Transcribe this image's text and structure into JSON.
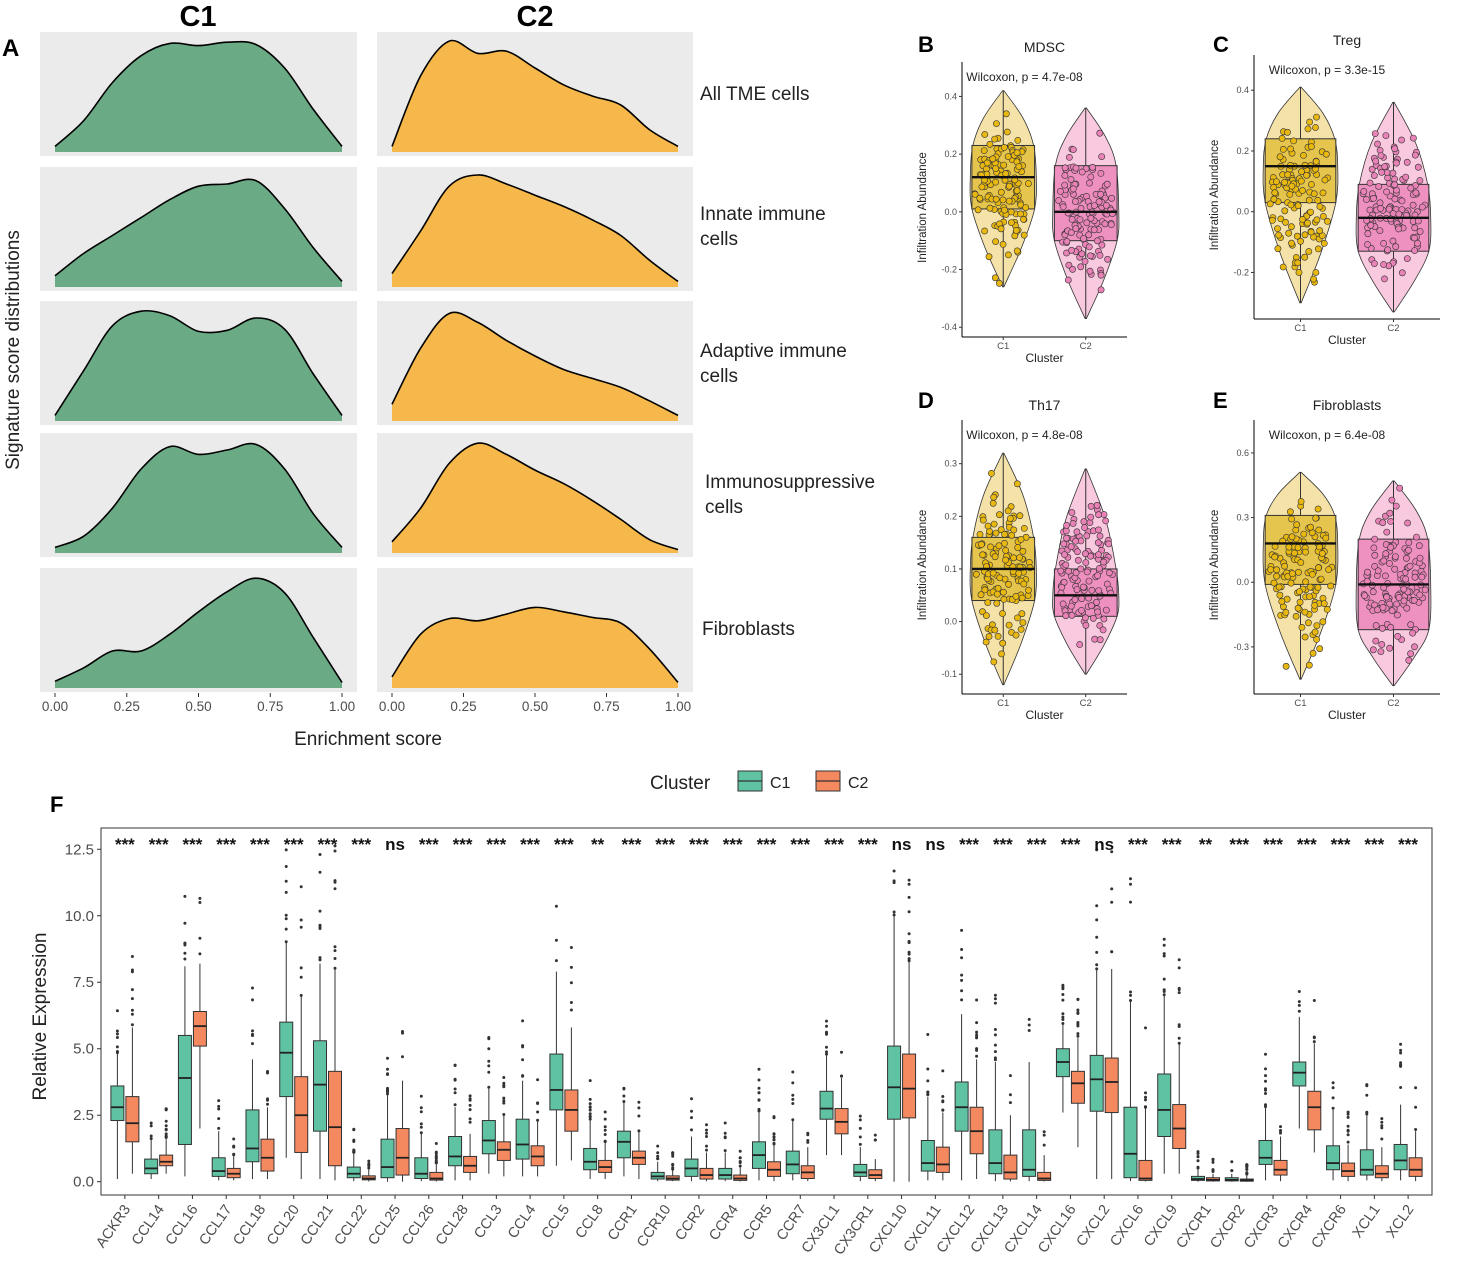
{
  "panel_letters": {
    "A": "A",
    "B": "B",
    "C": "C",
    "D": "D",
    "E": "E",
    "F": "F"
  },
  "colors": {
    "c1_density": "#6aaa85",
    "c2_density": "#f6b84a",
    "facet_bg": "#ebebeb",
    "c1_violin": "#f3dfa0",
    "c1_box": "#e2c03e",
    "c1_point": "#e8b810",
    "c2_violin": "#f7c3dc",
    "c2_box": "#ec86bb",
    "c2_point": "#e982b7",
    "c1_teal": "#5fc2a2",
    "c2_orange": "#f4895f",
    "text": "#222222",
    "axis_text": "#4d4d4d"
  },
  "chart_data": [
    {
      "id": "A",
      "type": "area",
      "title": "",
      "column_labels": [
        "C1",
        "C2"
      ],
      "row_labels": [
        [
          "All TME cells"
        ],
        [
          "Innate immune",
          "cells"
        ],
        [
          "Adaptive immune",
          "cells"
        ],
        [
          "Immunosuppressive",
          "cells"
        ],
        [
          "Fibroblasts"
        ]
      ],
      "xlabel": "Enrichment score",
      "ylabel": "Signature score distributions",
      "xlim": [
        0,
        1
      ],
      "x_ticks": [
        "0.00",
        "0.25",
        "0.50",
        "0.75",
        "1.00"
      ],
      "x": [
        0,
        0.1,
        0.2,
        0.3,
        0.4,
        0.5,
        0.6,
        0.7,
        0.8,
        0.9,
        1.0
      ],
      "series": [
        {
          "name": "C1 All TME cells",
          "values": [
            0.05,
            0.28,
            0.62,
            0.86,
            0.97,
            0.95,
            0.98,
            0.96,
            0.75,
            0.38,
            0.05
          ]
        },
        {
          "name": "C2 All TME cells",
          "values": [
            0.05,
            0.68,
            0.99,
            0.88,
            0.9,
            0.75,
            0.6,
            0.5,
            0.42,
            0.2,
            0.05
          ]
        },
        {
          "name": "C1 Innate immune cells",
          "values": [
            0.1,
            0.3,
            0.46,
            0.62,
            0.78,
            0.9,
            0.92,
            0.95,
            0.7,
            0.35,
            0.05
          ]
        },
        {
          "name": "C2 Innate immune cells",
          "values": [
            0.12,
            0.5,
            0.9,
            1.0,
            0.92,
            0.82,
            0.72,
            0.6,
            0.46,
            0.24,
            0.05
          ]
        },
        {
          "name": "C1 Adaptive immune cells",
          "values": [
            0.05,
            0.45,
            0.85,
            0.98,
            0.94,
            0.8,
            0.81,
            0.92,
            0.82,
            0.42,
            0.05
          ]
        },
        {
          "name": "C2 Adaptive immune cells",
          "values": [
            0.15,
            0.65,
            0.96,
            0.88,
            0.72,
            0.58,
            0.46,
            0.38,
            0.3,
            0.18,
            0.05
          ]
        },
        {
          "name": "C1 Immunosuppressive cells",
          "values": [
            0.05,
            0.15,
            0.4,
            0.75,
            0.95,
            0.88,
            0.92,
            0.97,
            0.75,
            0.35,
            0.05
          ]
        },
        {
          "name": "C2 Immunosuppressive cells",
          "values": [
            0.1,
            0.4,
            0.8,
            0.98,
            0.88,
            0.74,
            0.62,
            0.47,
            0.3,
            0.12,
            0.03
          ]
        },
        {
          "name": "C1 Fibroblasts",
          "values": [
            0.06,
            0.18,
            0.33,
            0.33,
            0.48,
            0.68,
            0.86,
            0.98,
            0.85,
            0.45,
            0.05
          ]
        },
        {
          "name": "C2 Fibroblasts",
          "values": [
            0.1,
            0.48,
            0.62,
            0.6,
            0.66,
            0.72,
            0.68,
            0.63,
            0.58,
            0.35,
            0.05
          ]
        }
      ]
    },
    {
      "id": "B",
      "type": "violin-box",
      "title": "MDSC",
      "annotation": "Wilcoxon, p = 4.7e-08",
      "xlabel": "Cluster",
      "ylabel": "Infiltration Abundance",
      "categories": [
        "C1",
        "C2"
      ],
      "ylim": [
        -0.42,
        0.45
      ],
      "y_ticks": [
        -0.4,
        -0.2,
        0.0,
        0.2,
        0.4
      ],
      "y_tick_labels": [
        "-0.4",
        "-0.2",
        "0.0",
        "0.2",
        "0.4"
      ],
      "series": [
        {
          "name": "C1",
          "min": -0.26,
          "q1": 0.01,
          "median": 0.12,
          "q3": 0.23,
          "max": 0.42
        },
        {
          "name": "C2",
          "min": -0.37,
          "q1": -0.1,
          "median": 0.0,
          "q3": 0.16,
          "max": 0.36
        }
      ]
    },
    {
      "id": "C",
      "type": "violin-box",
      "title": "Treg",
      "annotation": "Wilcoxon, p = 3.3e-15",
      "xlabel": "Cluster",
      "ylabel": "Infiltration Abundance",
      "categories": [
        "C1",
        "C2"
      ],
      "ylim": [
        -0.34,
        0.45
      ],
      "y_ticks": [
        -0.2,
        0.0,
        0.2,
        0.4
      ],
      "y_tick_labels": [
        "-0.2",
        "0.0",
        "0.2",
        "0.4"
      ],
      "series": [
        {
          "name": "C1",
          "min": -0.3,
          "q1": 0.03,
          "median": 0.15,
          "q3": 0.24,
          "max": 0.41
        },
        {
          "name": "C2",
          "min": -0.33,
          "q1": -0.13,
          "median": -0.02,
          "q3": 0.09,
          "max": 0.36
        }
      ]
    },
    {
      "id": "D",
      "type": "violin-box",
      "title": "Th17",
      "annotation": "Wilcoxon, p = 4.8e-08",
      "xlabel": "Cluster",
      "ylabel": "Infiltration Abundance",
      "categories": [
        "C1",
        "C2"
      ],
      "ylim": [
        -0.13,
        0.345
      ],
      "y_ticks": [
        -0.1,
        0.0,
        0.1,
        0.2,
        0.3
      ],
      "y_tick_labels": [
        "-0.1",
        "0.0",
        "0.1",
        "0.2",
        "0.3"
      ],
      "series": [
        {
          "name": "C1",
          "min": -0.12,
          "q1": 0.04,
          "median": 0.1,
          "q3": 0.16,
          "max": 0.32
        },
        {
          "name": "C2",
          "min": -0.1,
          "q1": 0.01,
          "median": 0.05,
          "q3": 0.1,
          "max": 0.29
        }
      ]
    },
    {
      "id": "E",
      "type": "violin-box",
      "title": "Fibroblasts",
      "annotation": "Wilcoxon, p = 6.4e-08",
      "xlabel": "Cluster",
      "ylabel": "Infiltration Abundance",
      "categories": [
        "C1",
        "C2"
      ],
      "ylim": [
        -0.5,
        0.66
      ],
      "y_ticks": [
        -0.3,
        0.0,
        0.3,
        0.6
      ],
      "y_tick_labels": [
        "-0.3",
        "0.0",
        "0.3",
        "0.6"
      ],
      "series": [
        {
          "name": "C1",
          "min": -0.45,
          "q1": -0.01,
          "median": 0.18,
          "q3": 0.31,
          "max": 0.51
        },
        {
          "name": "C2",
          "min": -0.48,
          "q1": -0.22,
          "median": -0.01,
          "q3": 0.2,
          "max": 0.47
        }
      ]
    },
    {
      "id": "F",
      "type": "box",
      "legend_title": "Cluster",
      "legend_labels": [
        "C1",
        "C2"
      ],
      "ylabel": "Relative Expression",
      "xlabel": "",
      "ylim": [
        -0.5,
        13.3
      ],
      "y_ticks": [
        0,
        2.5,
        5,
        7.5,
        10,
        12.5
      ],
      "y_tick_labels": [
        "0.0",
        "2.5",
        "5.0",
        "7.5",
        "10.0",
        "12.5"
      ],
      "categories": [
        "ACKR3",
        "CCL14",
        "CCL16",
        "CCL17",
        "CCL18",
        "CCL20",
        "CCL21",
        "CCL22",
        "CCL25",
        "CCL26",
        "CCL28",
        "CCL3",
        "CCL4",
        "CCL5",
        "CCL8",
        "CCR1",
        "CCR10",
        "CCR2",
        "CCR4",
        "CCR5",
        "CCR7",
        "CX3CL1",
        "CX3CR1",
        "CXCL10",
        "CXCL11",
        "CXCL12",
        "CXCL13",
        "CXCL14",
        "CXCL16",
        "CXCL2",
        "CXCL6",
        "CXCL9",
        "CXCR1",
        "CXCR2",
        "CXCR3",
        "CXCR4",
        "CXCR6",
        "XCL1",
        "XCL2"
      ],
      "significance": [
        "***",
        "***",
        "***",
        "***",
        "***",
        "***",
        "***",
        "***",
        "ns",
        "***",
        "***",
        "***",
        "***",
        "***",
        "**",
        "***",
        "***",
        "***",
        "***",
        "***",
        "***",
        "***",
        "***",
        "ns",
        "ns",
        "***",
        "***",
        "***",
        "***",
        "ns",
        "***",
        "***",
        "**",
        "***",
        "***",
        "***",
        "***",
        "***",
        "***"
      ],
      "series": [
        {
          "name": "C1",
          "boxes": [
            [
              0.1,
              2.3,
              2.8,
              3.6,
              4.8
            ],
            [
              0.1,
              0.3,
              0.5,
              0.85,
              1.6
            ],
            [
              0.2,
              1.4,
              3.9,
              5.5,
              8.1
            ],
            [
              0.05,
              0.2,
              0.4,
              0.9,
              1.9
            ],
            [
              0.1,
              0.75,
              1.25,
              2.7,
              4.6
            ],
            [
              0.9,
              3.2,
              4.85,
              6.0,
              9.0
            ],
            [
              0.1,
              1.9,
              3.65,
              5.3,
              8.2
            ],
            [
              0.02,
              0.15,
              0.3,
              0.55,
              1.1
            ],
            [
              0.0,
              0.15,
              0.55,
              1.6,
              3.3
            ],
            [
              0.02,
              0.12,
              0.3,
              0.9,
              1.8
            ],
            [
              0.05,
              0.6,
              0.95,
              1.7,
              2.8
            ],
            [
              0.3,
              1.05,
              1.55,
              2.3,
              3.5
            ],
            [
              0.2,
              0.85,
              1.4,
              2.35,
              3.8
            ],
            [
              0.6,
              2.7,
              3.45,
              4.8,
              7.9
            ],
            [
              0.1,
              0.45,
              0.75,
              1.25,
              2.3
            ],
            [
              0.2,
              0.9,
              1.5,
              1.9,
              3.0
            ],
            [
              0.02,
              0.1,
              0.2,
              0.35,
              0.75
            ],
            [
              0.02,
              0.2,
              0.5,
              0.85,
              1.7
            ],
            [
              0.02,
              0.1,
              0.25,
              0.5,
              1.1
            ],
            [
              0.05,
              0.5,
              1.0,
              1.5,
              2.6
            ],
            [
              0.05,
              0.3,
              0.65,
              1.15,
              2.3
            ],
            [
              1.0,
              2.35,
              2.75,
              3.4,
              4.8
            ],
            [
              0.02,
              0.2,
              0.35,
              0.65,
              1.3
            ],
            [
              0.0,
              2.35,
              3.55,
              5.1,
              10.0
            ],
            [
              0.05,
              0.4,
              0.7,
              1.55,
              3.2
            ],
            [
              0.05,
              1.9,
              2.8,
              3.75,
              6.3
            ],
            [
              0.02,
              0.3,
              0.7,
              1.95,
              4.5
            ],
            [
              0.02,
              0.2,
              0.45,
              1.95,
              4.5
            ],
            [
              2.6,
              3.95,
              4.5,
              5.0,
              5.9
            ],
            [
              0.1,
              2.65,
              3.85,
              4.75,
              8.0
            ],
            [
              0.02,
              0.15,
              1.05,
              2.8,
              6.8
            ],
            [
              0.3,
              1.7,
              2.7,
              4.05,
              7.0
            ],
            [
              0.0,
              0.05,
              0.1,
              0.2,
              0.45
            ],
            [
              0.0,
              0.03,
              0.07,
              0.15,
              0.3
            ],
            [
              0.05,
              0.65,
              0.9,
              1.55,
              2.8
            ],
            [
              2.0,
              3.6,
              4.1,
              4.5,
              6.2
            ],
            [
              0.05,
              0.45,
              0.7,
              1.35,
              2.7
            ],
            [
              0.05,
              0.25,
              0.45,
              1.2,
              2.5
            ],
            [
              0.05,
              0.45,
              0.8,
              1.4,
              2.9
            ]
          ]
        },
        {
          "name": "C2",
          "boxes": [
            [
              0.3,
              1.5,
              2.2,
              3.2,
              5.8
            ],
            [
              0.3,
              0.6,
              0.75,
              1.0,
              1.6
            ],
            [
              2.0,
              5.1,
              5.85,
              6.4,
              8.2
            ],
            [
              0.05,
              0.15,
              0.3,
              0.5,
              1.0
            ],
            [
              0.1,
              0.4,
              0.9,
              1.6,
              2.8
            ],
            [
              0.1,
              1.1,
              2.5,
              3.95,
              7.0
            ],
            [
              0.05,
              0.6,
              2.05,
              4.15,
              8.0
            ],
            [
              0.01,
              0.07,
              0.12,
              0.22,
              0.5
            ],
            [
              0.0,
              0.25,
              0.9,
              2.0,
              3.8
            ],
            [
              0.01,
              0.06,
              0.12,
              0.35,
              0.7
            ],
            [
              0.05,
              0.35,
              0.6,
              0.95,
              1.8
            ],
            [
              0.2,
              0.8,
              1.2,
              1.5,
              2.5
            ],
            [
              0.2,
              0.6,
              0.95,
              1.35,
              2.3
            ],
            [
              0.8,
              1.9,
              2.7,
              3.45,
              5.8
            ],
            [
              0.1,
              0.35,
              0.55,
              0.8,
              1.5
            ],
            [
              0.1,
              0.65,
              0.9,
              1.15,
              1.9
            ],
            [
              0.02,
              0.06,
              0.12,
              0.22,
              0.45
            ],
            [
              0.02,
              0.1,
              0.25,
              0.5,
              1.1
            ],
            [
              0.01,
              0.05,
              0.12,
              0.25,
              0.55
            ],
            [
              0.02,
              0.2,
              0.45,
              0.75,
              1.4
            ],
            [
              0.02,
              0.12,
              0.35,
              0.6,
              1.3
            ],
            [
              1.0,
              1.8,
              2.25,
              2.75,
              3.9
            ],
            [
              0.02,
              0.12,
              0.25,
              0.45,
              0.85
            ],
            [
              0.0,
              2.4,
              3.5,
              4.8,
              8.3
            ],
            [
              0.05,
              0.35,
              0.65,
              1.3,
              2.6
            ],
            [
              0.1,
              1.05,
              1.9,
              2.8,
              4.6
            ],
            [
              0.01,
              0.1,
              0.35,
              1.0,
              2.5
            ],
            [
              0.01,
              0.05,
              0.12,
              0.35,
              1.0
            ],
            [
              1.3,
              2.95,
              3.7,
              4.15,
              5.4
            ],
            [
              0.1,
              2.6,
              3.75,
              4.65,
              8.0
            ],
            [
              0.01,
              0.05,
              0.12,
              0.8,
              2.8
            ],
            [
              0.3,
              1.25,
              2.0,
              2.9,
              5.2
            ],
            [
              0.0,
              0.03,
              0.07,
              0.15,
              0.3
            ],
            [
              0.0,
              0.02,
              0.05,
              0.1,
              0.22
            ],
            [
              0.02,
              0.25,
              0.45,
              0.8,
              1.7
            ],
            [
              1.1,
              1.95,
              2.8,
              3.4,
              5.2
            ],
            [
              0.02,
              0.2,
              0.4,
              0.7,
              1.4
            ],
            [
              0.02,
              0.15,
              0.3,
              0.6,
              1.3
            ],
            [
              0.02,
              0.2,
              0.45,
              0.9,
              1.9
            ]
          ]
        }
      ]
    }
  ]
}
